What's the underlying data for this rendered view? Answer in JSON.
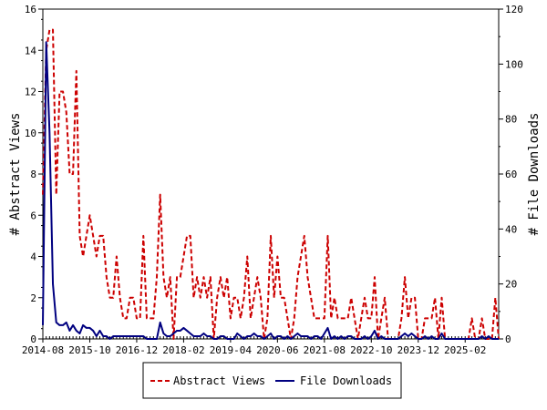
{
  "chart_data": {
    "type": "line",
    "y_left_label": "# Abstract Views",
    "y_right_label": "# File Downloads",
    "y_left_range": [
      0,
      16
    ],
    "y_right_range": [
      0,
      120
    ],
    "y_left_ticks": [
      "0",
      "2",
      "4",
      "6",
      "8",
      "10",
      "12",
      "14",
      "16"
    ],
    "y_right_ticks": [
      "0",
      "20",
      "40",
      "60",
      "80",
      "100",
      "120"
    ],
    "x_ticks": [
      "2014-08",
      "2015-10",
      "2016-12",
      "2018-02",
      "2019-04",
      "2020-06",
      "2021-08",
      "2022-10",
      "2023-12",
      "2025-02"
    ],
    "x_months_total": 136,
    "legend_placement": "bottom",
    "series": [
      {
        "name": "Abstract Views",
        "axis": "left",
        "color": "#cc0000",
        "dash": true,
        "values": [
          7,
          14,
          15,
          15,
          7,
          12,
          12,
          11,
          8,
          8,
          13,
          5,
          4,
          5,
          6,
          5,
          4,
          5,
          5,
          3,
          2,
          2,
          4,
          2,
          1,
          1,
          2,
          2,
          1,
          1,
          5,
          1,
          1,
          1,
          3,
          7,
          3,
          2,
          3,
          0,
          3,
          3,
          4,
          5,
          5,
          2,
          3,
          2,
          3,
          2,
          3,
          0,
          2,
          3,
          2,
          3,
          1,
          2,
          2,
          1,
          2,
          4,
          1,
          2,
          3,
          2,
          0,
          1,
          5,
          2,
          4,
          2,
          2,
          1,
          0,
          1,
          3,
          4,
          5,
          3,
          2,
          1,
          1,
          1,
          1,
          5,
          1,
          2,
          1,
          1,
          1,
          1,
          2,
          1,
          0,
          1,
          2,
          1,
          1,
          3,
          0,
          1,
          2,
          0,
          0,
          0,
          0,
          1,
          3,
          1,
          2,
          2,
          0,
          0,
          1,
          1,
          1,
          2,
          0,
          2,
          0,
          0,
          0,
          0,
          0,
          0,
          0,
          0,
          1,
          0,
          0,
          1,
          0,
          0,
          0,
          2,
          0
        ]
      },
      {
        "name": "File Downloads",
        "axis": "right",
        "color": "#000080",
        "dash": false,
        "values": [
          5,
          108,
          75,
          20,
          6,
          5,
          5,
          6,
          3,
          5,
          3,
          2,
          5,
          4,
          4,
          3,
          1,
          3,
          1,
          1,
          0,
          1,
          1,
          1,
          1,
          1,
          1,
          1,
          1,
          1,
          1,
          0,
          0,
          0,
          0,
          6,
          2,
          1,
          1,
          2,
          3,
          3,
          4,
          3,
          2,
          1,
          1,
          1,
          2,
          1,
          1,
          0,
          0,
          1,
          1,
          0,
          0,
          0,
          2,
          1,
          0,
          1,
          1,
          2,
          1,
          1,
          0,
          1,
          2,
          0,
          1,
          1,
          0,
          1,
          0,
          1,
          2,
          1,
          1,
          1,
          0,
          1,
          1,
          0,
          2,
          4,
          0,
          1,
          0,
          1,
          0,
          1,
          1,
          0,
          0,
          0,
          1,
          0,
          1,
          3,
          0,
          1,
          0,
          0,
          0,
          0,
          0,
          1,
          2,
          1,
          2,
          1,
          0,
          0,
          1,
          0,
          1,
          0,
          0,
          2,
          0,
          0,
          0,
          0,
          0,
          0,
          0,
          0,
          0,
          0,
          0,
          1,
          0,
          1,
          0,
          0,
          0
        ]
      }
    ]
  }
}
